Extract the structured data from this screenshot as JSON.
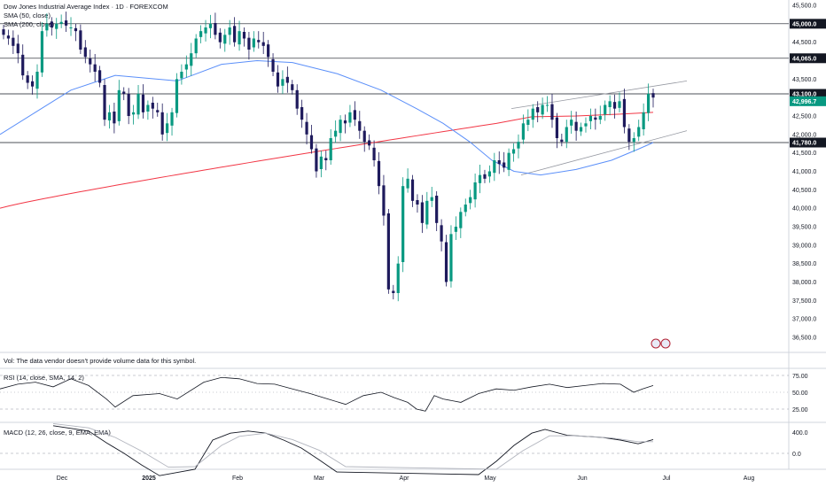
{
  "legend": {
    "title": "Dow Jones Industrial Average Index · 1D · FOREXCOM",
    "sma50": "SMA (50, close)",
    "sma200": "SMA (200, close)"
  },
  "volume_note": "Vol: The data vendor doesn't provide volume data for this symbol.",
  "rsi_label": "RSI (14, close, SMA, 14, 2)",
  "macd_label": "MACD (12, 26, close, 9, EMA, EMA)",
  "price_axis": [
    "45,500.0",
    "45,000.0",
    "44,500.0",
    "44,065.0",
    "43,500.0",
    "43,100.0",
    "42,996.7",
    "42,500.0",
    "42,000.0",
    "41,780.0",
    "41,500.0",
    "41,000.0",
    "40,500.0",
    "40,000.0",
    "39,500.0",
    "39,000.0",
    "38,500.0",
    "38,000.0",
    "37,500.0",
    "37,000.0",
    "36,500.0"
  ],
  "rsi_axis": [
    "75.00",
    "50.00",
    "25.00"
  ],
  "macd_axis": [
    "400.0",
    "0.0"
  ],
  "x_axis": [
    {
      "label": "Dec",
      "bold": false
    },
    {
      "label": "2025",
      "bold": true
    },
    {
      "label": "Feb",
      "bold": false
    },
    {
      "label": "Mar",
      "bold": false
    },
    {
      "label": "Apr",
      "bold": false
    },
    {
      "label": "May",
      "bold": false
    },
    {
      "label": "Jun",
      "bold": false
    },
    {
      "label": "Jul",
      "bold": false
    },
    {
      "label": "Aug",
      "bold": false
    }
  ],
  "colors": {
    "up": "#089981",
    "down": "#1e1a5c",
    "sma50": "#5b8ff9",
    "sma200": "#f23645",
    "level": "#131722",
    "channel": "#9598a1",
    "rsi": "#131722",
    "macd": "#131722",
    "signal": "#b2b5be"
  },
  "chart_data": {
    "type": "candlestick",
    "symbol": "Dow Jones Industrial Average Index",
    "timeframe": "1D",
    "source": "FOREXCOM",
    "y_range": [
      36300,
      45800
    ],
    "horizontal_levels": [
      45000,
      44065,
      43100,
      41780
    ],
    "last_price": 42996.7,
    "closes": [
      44700,
      44600,
      44400,
      44200,
      43600,
      43400,
      43300,
      43700,
      44800,
      45000,
      44900,
      45000,
      45050,
      44950,
      44900,
      44800,
      44300,
      44100,
      43900,
      43700,
      43400,
      42400,
      42600,
      42300,
      43200,
      43100,
      42500,
      42600,
      43100,
      42600,
      42800,
      42700,
      42600,
      42000,
      42300,
      42600,
      43500,
      43700,
      43900,
      44200,
      44600,
      44800,
      44900,
      45000,
      44700,
      44500,
      44700,
      44900,
      44500,
      44800,
      44600,
      44300,
      44600,
      44500,
      44400,
      44100,
      43700,
      43300,
      43500,
      43400,
      43200,
      42700,
      42400,
      42000,
      41600,
      41000,
      41400,
      41300,
      41900,
      42100,
      42400,
      42300,
      42600,
      42400,
      42100,
      41800,
      41700,
      41300,
      40600,
      39800,
      37800,
      37700,
      38500,
      40600,
      40800,
      40200,
      40100,
      39600,
      40200,
      40300,
      39600,
      39100,
      38000,
      39300,
      39500,
      39900,
      40100,
      40300,
      40700,
      40900,
      40800,
      41000,
      41300,
      41200,
      41100,
      41500,
      41600,
      41800,
      42300,
      42400,
      42700,
      42600,
      42800,
      42800,
      42400,
      41900,
      41800,
      42200,
      42400,
      42100,
      42200,
      42300,
      42500,
      42400,
      42500,
      42800,
      42900,
      42700,
      42900,
      42200,
      41800,
      41900,
      42200,
      42600,
      43100,
      43000
    ],
    "sma50_range": "approx 42,100 → 43,500 (Dec–Feb) → 41,000 (May) → 41,750 (Jun)",
    "sma200_range": "approx 40,000 (Nov) → 42,500 (Jun)"
  }
}
